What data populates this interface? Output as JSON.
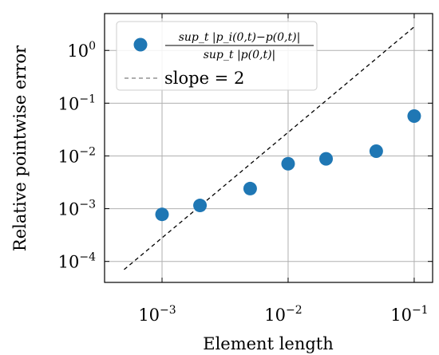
{
  "chart_data": {
    "type": "scatter",
    "xscale": "log",
    "yscale": "log",
    "xlabel": "Element length",
    "ylabel": "Relative pointwise error",
    "xlim": [
      0.00035,
      0.14
    ],
    "ylim": [
      4e-05,
      5
    ],
    "grid": true,
    "legend_placement": "top-left",
    "x_ticks": [
      {
        "value": 0.001,
        "base": "10",
        "exp": "−3"
      },
      {
        "value": 0.01,
        "base": "10",
        "exp": "−2"
      },
      {
        "value": 0.1,
        "base": "10",
        "exp": "−1"
      }
    ],
    "y_ticks": [
      {
        "value": 0.0001,
        "base": "10",
        "exp": "−4"
      },
      {
        "value": 0.001,
        "base": "10",
        "exp": "−3"
      },
      {
        "value": 0.01,
        "base": "10",
        "exp": "−2"
      },
      {
        "value": 0.1,
        "base": "10",
        "exp": "−1"
      },
      {
        "value": 1,
        "base": "10",
        "exp": "0"
      }
    ],
    "series": [
      {
        "legend_numerator": "sup_t |p_i(0,t)−p(0,t)|",
        "legend_denominator": "sup_t |p(0,t)|",
        "color": "#1f77b4",
        "marker": "circle",
        "x": [
          0.001,
          0.002,
          0.005,
          0.01,
          0.02,
          0.05,
          0.1
        ],
        "y": [
          0.00078,
          0.00115,
          0.0024,
          0.0071,
          0.0088,
          0.0123,
          0.057
        ]
      },
      {
        "name": "slope = 2",
        "color": "#000000",
        "style": "dashed",
        "x": [
          0.0005,
          0.1
        ],
        "y": [
          7e-05,
          2.8
        ]
      }
    ]
  }
}
